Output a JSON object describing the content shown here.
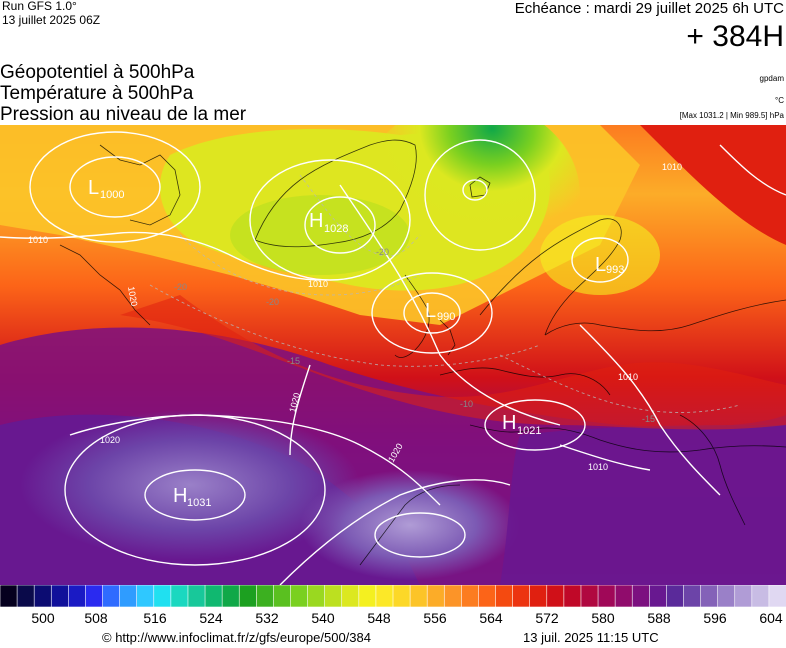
{
  "header": {
    "run": "Run GFS 1.0°",
    "run_date": "13 juillet 2025 06Z",
    "validity": "Echéance : mardi 29 juillet 2025 6h UTC",
    "lead": "+ 384H"
  },
  "fields": [
    "Géopotentiel à 500hPa",
    "Température à 500hPa",
    "Pression au niveau de la mer"
  ],
  "units": {
    "geopotential": "gpdam",
    "temperature": "°C",
    "pressure_range": "[Max 1031.2 | Min 989.5] hPa"
  },
  "pressure_centers": [
    {
      "type": "L",
      "value": "1000"
    },
    {
      "type": "H",
      "value": "1028"
    },
    {
      "type": "L",
      "value": "990"
    },
    {
      "type": "L",
      "value": "993"
    },
    {
      "type": "H",
      "value": "1021"
    },
    {
      "type": "H",
      "value": "1031"
    }
  ],
  "isobar_labels": [
    "1010",
    "1010",
    "1020",
    "1020",
    "1020",
    "1020",
    "1010",
    "1010",
    "1010"
  ],
  "isotherm_labels": [
    "-20",
    "-20",
    "-20",
    "-15",
    "-15",
    "-10"
  ],
  "colorbar": {
    "ticks": [
      "500",
      "508",
      "516",
      "524",
      "532",
      "540",
      "548",
      "556",
      "564",
      "572",
      "580",
      "588",
      "596",
      "604"
    ],
    "colors": [
      "#05001e",
      "#0a0a4a",
      "#0c0c72",
      "#10109a",
      "#1a1ac4",
      "#2a2af0",
      "#2f6bff",
      "#2f9cff",
      "#2fc8ff",
      "#20e0f0",
      "#1ad8c0",
      "#18c89a",
      "#10b870",
      "#10a848",
      "#1ca020",
      "#3cb020",
      "#5ac020",
      "#7ad020",
      "#9ad820",
      "#bce020",
      "#dce820",
      "#f4f020",
      "#fce828",
      "#fcd828",
      "#fcc428",
      "#fcac28",
      "#fc9428",
      "#fc7c20",
      "#fc6418",
      "#f44a10",
      "#ec3410",
      "#e02010",
      "#d01018",
      "#c00828",
      "#b00840",
      "#a00858",
      "#900c6c",
      "#7c1080",
      "#681890",
      "#5a2a9a",
      "#6c44a8",
      "#8462b8",
      "#9a80c8",
      "#b09cd6",
      "#c8bce4",
      "#e0d8f2"
    ]
  },
  "footer": {
    "credit": "© http://www.infoclimat.fr/z/gfs/europe/500/384",
    "generated": "13 juil. 2025 11:15 UTC"
  }
}
